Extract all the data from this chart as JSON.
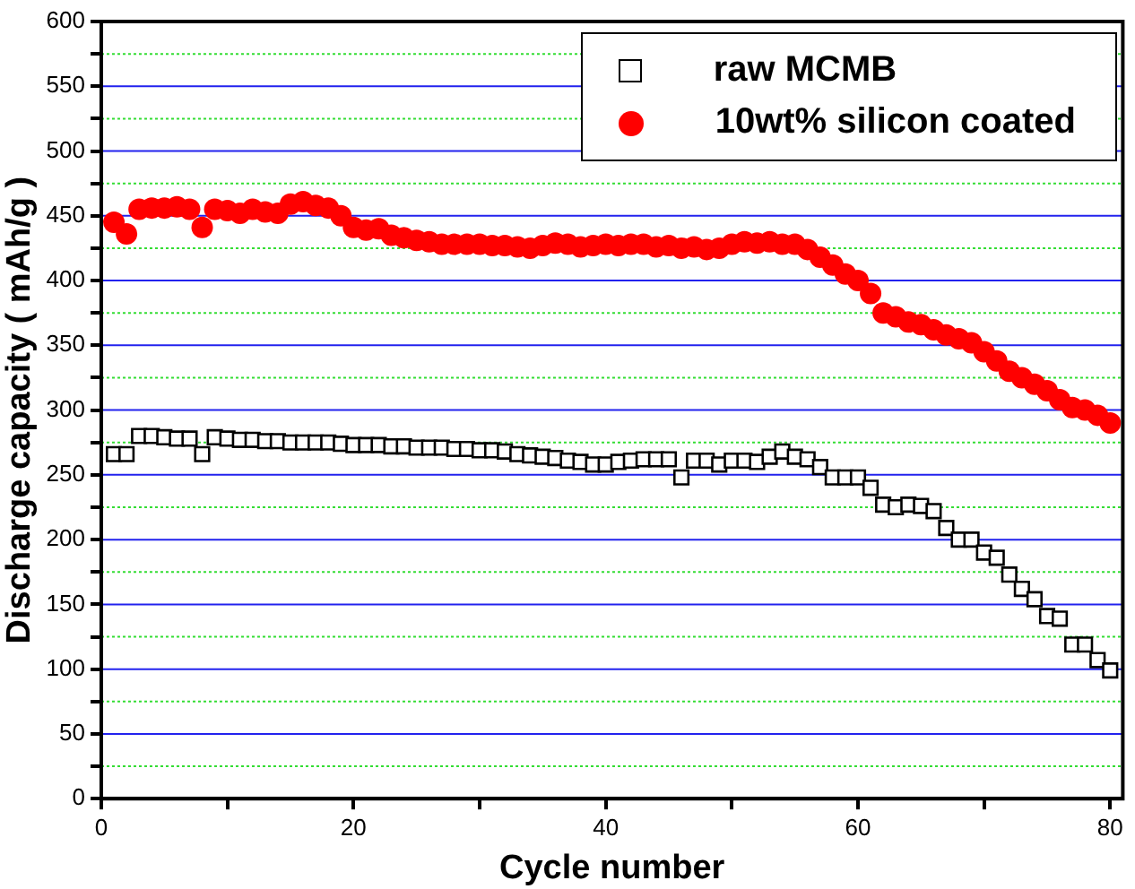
{
  "chart_data": {
    "type": "scatter",
    "xlabel": "Cycle number",
    "ylabel": "Discharge capacity ( mAh/g )",
    "x": [
      1,
      2,
      3,
      4,
      5,
      6,
      7,
      8,
      9,
      10,
      11,
      12,
      13,
      14,
      15,
      16,
      17,
      18,
      19,
      20,
      21,
      22,
      23,
      24,
      25,
      26,
      27,
      28,
      29,
      30,
      31,
      32,
      33,
      34,
      35,
      36,
      37,
      38,
      39,
      40,
      41,
      42,
      43,
      44,
      45,
      46,
      47,
      48,
      49,
      50,
      51,
      52,
      53,
      54,
      55,
      56,
      57,
      58,
      59,
      60,
      61,
      62,
      63,
      64,
      65,
      66,
      67,
      68,
      69,
      70,
      71,
      72,
      73,
      74,
      75,
      76,
      77,
      78,
      79,
      80
    ],
    "series": [
      {
        "name": "raw MCMB",
        "color": "#000000",
        "marker": "square",
        "values": [
          266,
          266,
          280,
          280,
          279,
          278,
          278,
          266,
          279,
          278,
          277,
          277,
          276,
          276,
          275,
          275,
          275,
          275,
          274,
          273,
          273,
          273,
          272,
          272,
          271,
          271,
          271,
          270,
          270,
          269,
          269,
          268,
          266,
          265,
          264,
          263,
          261,
          260,
          258,
          258,
          260,
          261,
          262,
          262,
          262,
          248,
          261,
          261,
          258,
          261,
          261,
          260,
          264,
          268,
          264,
          262,
          256,
          248,
          248,
          248,
          240,
          227,
          225,
          227,
          226,
          222,
          209,
          200,
          200,
          190,
          186,
          173,
          162,
          154,
          141,
          139,
          119,
          119,
          107,
          99
        ]
      },
      {
        "name": "10wt% silicon coated",
        "color": "#ff0000",
        "marker": "circle",
        "values": [
          445,
          436,
          455,
          456,
          456,
          457,
          455,
          441,
          455,
          454,
          452,
          455,
          453,
          452,
          459,
          461,
          458,
          456,
          450,
          441,
          439,
          440,
          435,
          433,
          431,
          430,
          428,
          428,
          428,
          428,
          427,
          427,
          426,
          425,
          427,
          429,
          428,
          426,
          427,
          428,
          427,
          428,
          428,
          426,
          427,
          425,
          426,
          424,
          425,
          428,
          430,
          429,
          430,
          428,
          428,
          424,
          418,
          412,
          405,
          400,
          390,
          375,
          372,
          368,
          366,
          362,
          358,
          355,
          352,
          345,
          338,
          330,
          325,
          320,
          315,
          308,
          302,
          300,
          296,
          290
        ]
      }
    ],
    "xlim": [
      0,
      81
    ],
    "xticks": [
      0,
      {
        "value": 10,
        "label": null
      },
      20,
      {
        "value": 30,
        "label": null
      },
      40,
      {
        "value": 50,
        "label": null
      },
      60,
      {
        "value": 70,
        "label": null
      },
      80
    ],
    "ylim": [
      0,
      600
    ],
    "yticks": [
      0,
      {
        "value": 25,
        "label": null
      },
      50,
      {
        "value": 75,
        "label": null
      },
      100,
      {
        "value": 125,
        "label": null
      },
      150,
      {
        "value": 175,
        "label": null
      },
      200,
      {
        "value": 225,
        "label": null
      },
      250,
      {
        "value": 275,
        "label": null
      },
      300,
      {
        "value": 325,
        "label": null
      },
      350,
      {
        "value": 375,
        "label": null
      },
      400,
      {
        "value": 425,
        "label": null
      },
      450,
      {
        "value": 475,
        "label": null
      },
      500,
      {
        "value": 525,
        "label": null
      },
      550,
      {
        "value": 575,
        "label": null
      },
      600
    ],
    "grid": "y",
    "legend": "top right"
  }
}
